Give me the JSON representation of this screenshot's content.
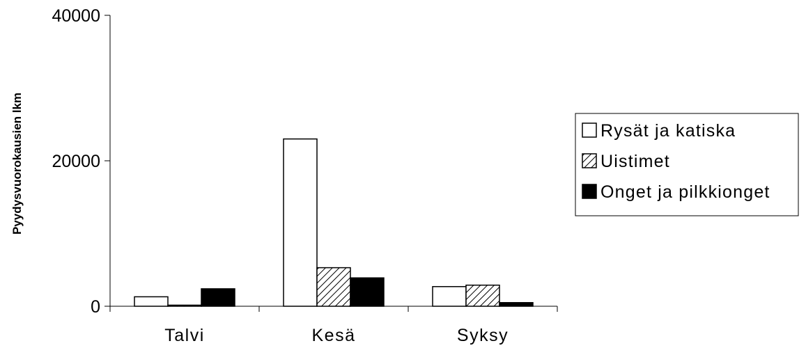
{
  "chart_data": {
    "type": "bar",
    "title": "",
    "xlabel": "",
    "ylabel": "Pyydysvuorokausien lkm",
    "ylim": [
      0,
      40000
    ],
    "yticks": [
      0,
      20000,
      40000
    ],
    "categories": [
      "Talvi",
      "Kesä",
      "Syksy"
    ],
    "series": [
      {
        "name": "Rysät ja katiska",
        "values": [
          1300,
          23000,
          2700
        ],
        "fill": "white"
      },
      {
        "name": "Uistimet",
        "values": [
          150,
          5300,
          2900
        ],
        "fill": "hatch"
      },
      {
        "name": "Onget ja pilkkionget",
        "values": [
          2400,
          3900,
          500
        ],
        "fill": "black"
      }
    ],
    "grid": false,
    "legend_position": "right"
  }
}
